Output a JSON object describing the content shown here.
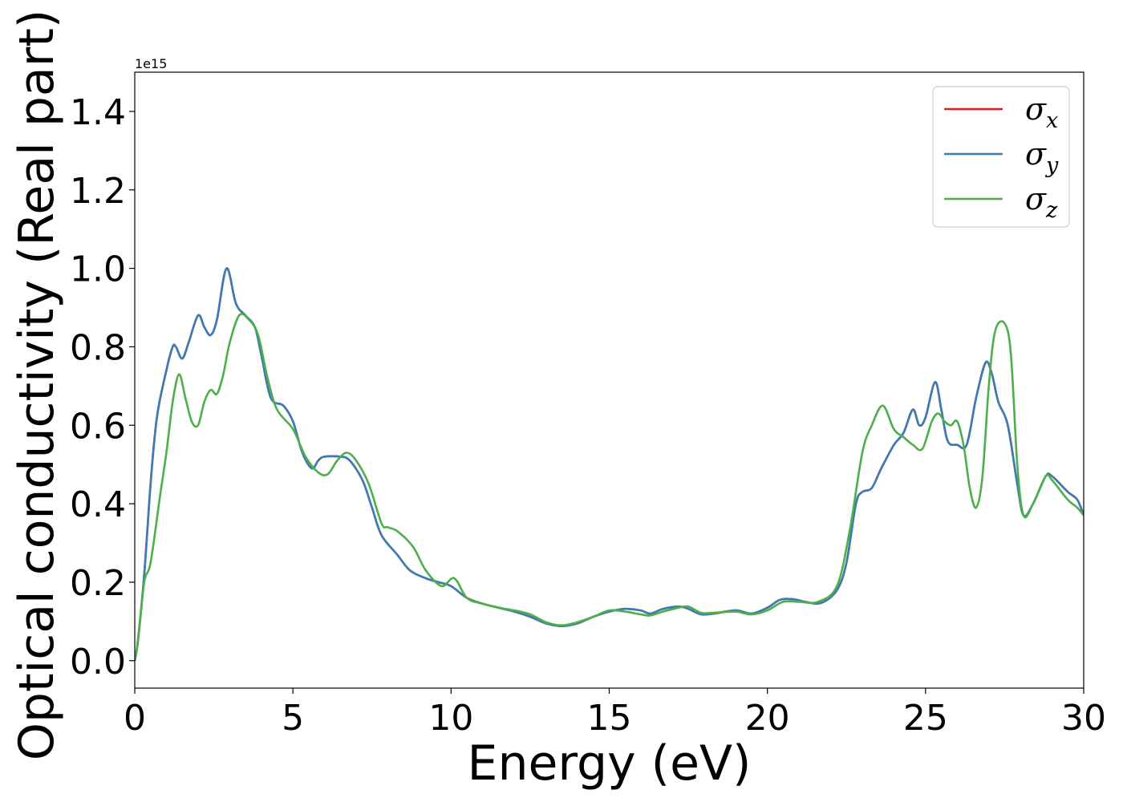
{
  "chart_data": {
    "type": "line",
    "xlabel": "Energy (eV)",
    "ylabel": "Optical conductivity (Real part)",
    "offset_label": "1e15",
    "xlim": [
      0,
      30
    ],
    "ylim": [
      -0.07,
      1.5
    ],
    "xticks": [
      0,
      5,
      10,
      15,
      20,
      25,
      30
    ],
    "yticks": [
      0.0,
      0.2,
      0.4,
      0.6,
      0.8,
      1.0,
      1.2,
      1.4
    ],
    "xtick_labels": [
      "0",
      "5",
      "10",
      "15",
      "20",
      "25",
      "30"
    ],
    "ytick_labels": [
      "0.0",
      "0.2",
      "0.4",
      "0.6",
      "0.8",
      "1.0",
      "1.2",
      "1.4"
    ],
    "grid": false,
    "legend_position": "top-right",
    "series": [
      {
        "name": "σx",
        "name_base": "σ",
        "name_sub": "x",
        "color": "#e41a1c",
        "points": [
          [
            0,
            0
          ],
          [
            0.1,
            0.05
          ],
          [
            0.3,
            0.22
          ],
          [
            0.5,
            0.45
          ],
          [
            0.7,
            0.62
          ],
          [
            1.0,
            0.74
          ],
          [
            1.2,
            0.8
          ],
          [
            1.3,
            0.8
          ],
          [
            1.5,
            0.77
          ],
          [
            1.7,
            0.81
          ],
          [
            2.0,
            0.88
          ],
          [
            2.2,
            0.85
          ],
          [
            2.4,
            0.83
          ],
          [
            2.6,
            0.87
          ],
          [
            2.9,
            1.0
          ],
          [
            3.2,
            0.91
          ],
          [
            3.5,
            0.88
          ],
          [
            3.8,
            0.85
          ],
          [
            4.0,
            0.78
          ],
          [
            4.3,
            0.67
          ],
          [
            4.7,
            0.65
          ],
          [
            5.0,
            0.61
          ],
          [
            5.3,
            0.53
          ],
          [
            5.6,
            0.49
          ],
          [
            5.8,
            0.51
          ],
          [
            6.0,
            0.52
          ],
          [
            6.5,
            0.52
          ],
          [
            6.8,
            0.51
          ],
          [
            7.2,
            0.46
          ],
          [
            7.5,
            0.39
          ],
          [
            7.8,
            0.32
          ],
          [
            8.3,
            0.27
          ],
          [
            8.7,
            0.23
          ],
          [
            9.2,
            0.21
          ],
          [
            9.6,
            0.2
          ],
          [
            10.0,
            0.19
          ],
          [
            10.5,
            0.16
          ],
          [
            11.0,
            0.145
          ],
          [
            11.5,
            0.135
          ],
          [
            12.0,
            0.125
          ],
          [
            12.5,
            0.112
          ],
          [
            13.0,
            0.095
          ],
          [
            13.5,
            0.088
          ],
          [
            14.0,
            0.095
          ],
          [
            14.5,
            0.112
          ],
          [
            15.0,
            0.125
          ],
          [
            15.5,
            0.132
          ],
          [
            16.0,
            0.128
          ],
          [
            16.3,
            0.12
          ],
          [
            16.7,
            0.132
          ],
          [
            17.2,
            0.138
          ],
          [
            17.5,
            0.132
          ],
          [
            17.9,
            0.118
          ],
          [
            18.3,
            0.12
          ],
          [
            19.0,
            0.128
          ],
          [
            19.5,
            0.12
          ],
          [
            20.0,
            0.135
          ],
          [
            20.4,
            0.155
          ],
          [
            20.8,
            0.157
          ],
          [
            21.2,
            0.15
          ],
          [
            21.7,
            0.147
          ],
          [
            22.2,
            0.18
          ],
          [
            22.5,
            0.25
          ],
          [
            22.8,
            0.4
          ],
          [
            23.0,
            0.43
          ],
          [
            23.3,
            0.44
          ],
          [
            23.6,
            0.49
          ],
          [
            24.0,
            0.55
          ],
          [
            24.3,
            0.58
          ],
          [
            24.6,
            0.64
          ],
          [
            24.8,
            0.6
          ],
          [
            25.0,
            0.62
          ],
          [
            25.3,
            0.71
          ],
          [
            25.5,
            0.64
          ],
          [
            25.7,
            0.56
          ],
          [
            26.0,
            0.55
          ],
          [
            26.3,
            0.55
          ],
          [
            26.6,
            0.67
          ],
          [
            26.9,
            0.76
          ],
          [
            27.1,
            0.73
          ],
          [
            27.3,
            0.66
          ],
          [
            27.6,
            0.6
          ],
          [
            27.9,
            0.45
          ],
          [
            28.1,
            0.37
          ],
          [
            28.4,
            0.4
          ],
          [
            28.8,
            0.47
          ],
          [
            29.0,
            0.47
          ],
          [
            29.5,
            0.43
          ],
          [
            29.8,
            0.41
          ],
          [
            30.0,
            0.37
          ]
        ]
      },
      {
        "name": "σy",
        "name_base": "σ",
        "name_sub": "y",
        "color": "#377eb8",
        "points": [
          [
            0,
            0
          ],
          [
            0.1,
            0.05
          ],
          [
            0.3,
            0.22
          ],
          [
            0.5,
            0.45
          ],
          [
            0.7,
            0.62
          ],
          [
            1.0,
            0.74
          ],
          [
            1.2,
            0.8
          ],
          [
            1.3,
            0.8
          ],
          [
            1.5,
            0.77
          ],
          [
            1.7,
            0.81
          ],
          [
            2.0,
            0.88
          ],
          [
            2.2,
            0.85
          ],
          [
            2.4,
            0.83
          ],
          [
            2.6,
            0.87
          ],
          [
            2.9,
            1.0
          ],
          [
            3.2,
            0.91
          ],
          [
            3.5,
            0.88
          ],
          [
            3.8,
            0.85
          ],
          [
            4.0,
            0.78
          ],
          [
            4.3,
            0.67
          ],
          [
            4.7,
            0.65
          ],
          [
            5.0,
            0.61
          ],
          [
            5.3,
            0.53
          ],
          [
            5.6,
            0.49
          ],
          [
            5.8,
            0.51
          ],
          [
            6.0,
            0.52
          ],
          [
            6.5,
            0.52
          ],
          [
            6.8,
            0.51
          ],
          [
            7.2,
            0.46
          ],
          [
            7.5,
            0.39
          ],
          [
            7.8,
            0.32
          ],
          [
            8.3,
            0.27
          ],
          [
            8.7,
            0.23
          ],
          [
            9.2,
            0.21
          ],
          [
            9.6,
            0.2
          ],
          [
            10.0,
            0.19
          ],
          [
            10.5,
            0.16
          ],
          [
            11.0,
            0.145
          ],
          [
            11.5,
            0.135
          ],
          [
            12.0,
            0.125
          ],
          [
            12.5,
            0.112
          ],
          [
            13.0,
            0.095
          ],
          [
            13.5,
            0.088
          ],
          [
            14.0,
            0.095
          ],
          [
            14.5,
            0.112
          ],
          [
            15.0,
            0.125
          ],
          [
            15.5,
            0.132
          ],
          [
            16.0,
            0.128
          ],
          [
            16.3,
            0.12
          ],
          [
            16.7,
            0.132
          ],
          [
            17.2,
            0.138
          ],
          [
            17.5,
            0.132
          ],
          [
            17.9,
            0.118
          ],
          [
            18.3,
            0.12
          ],
          [
            19.0,
            0.128
          ],
          [
            19.5,
            0.12
          ],
          [
            20.0,
            0.135
          ],
          [
            20.4,
            0.155
          ],
          [
            20.8,
            0.157
          ],
          [
            21.2,
            0.15
          ],
          [
            21.7,
            0.147
          ],
          [
            22.2,
            0.18
          ],
          [
            22.5,
            0.25
          ],
          [
            22.8,
            0.4
          ],
          [
            23.0,
            0.43
          ],
          [
            23.3,
            0.44
          ],
          [
            23.6,
            0.49
          ],
          [
            24.0,
            0.55
          ],
          [
            24.3,
            0.58
          ],
          [
            24.6,
            0.64
          ],
          [
            24.8,
            0.6
          ],
          [
            25.0,
            0.62
          ],
          [
            25.3,
            0.71
          ],
          [
            25.5,
            0.64
          ],
          [
            25.7,
            0.56
          ],
          [
            26.0,
            0.55
          ],
          [
            26.3,
            0.55
          ],
          [
            26.6,
            0.67
          ],
          [
            26.9,
            0.76
          ],
          [
            27.1,
            0.73
          ],
          [
            27.3,
            0.66
          ],
          [
            27.6,
            0.6
          ],
          [
            27.9,
            0.45
          ],
          [
            28.1,
            0.37
          ],
          [
            28.4,
            0.4
          ],
          [
            28.8,
            0.47
          ],
          [
            29.0,
            0.47
          ],
          [
            29.5,
            0.43
          ],
          [
            29.8,
            0.41
          ],
          [
            30.0,
            0.37
          ]
        ]
      },
      {
        "name": "σz",
        "name_base": "σ",
        "name_sub": "z",
        "color": "#4daf4a",
        "points": [
          [
            0,
            0
          ],
          [
            0.1,
            0.05
          ],
          [
            0.3,
            0.2
          ],
          [
            0.5,
            0.25
          ],
          [
            0.8,
            0.42
          ],
          [
            1.0,
            0.53
          ],
          [
            1.2,
            0.66
          ],
          [
            1.4,
            0.73
          ],
          [
            1.6,
            0.67
          ],
          [
            1.8,
            0.61
          ],
          [
            2.0,
            0.6
          ],
          [
            2.2,
            0.66
          ],
          [
            2.4,
            0.69
          ],
          [
            2.6,
            0.68
          ],
          [
            2.8,
            0.73
          ],
          [
            3.0,
            0.81
          ],
          [
            3.3,
            0.88
          ],
          [
            3.6,
            0.87
          ],
          [
            3.9,
            0.83
          ],
          [
            4.2,
            0.72
          ],
          [
            4.5,
            0.64
          ],
          [
            5.0,
            0.59
          ],
          [
            5.4,
            0.52
          ],
          [
            5.8,
            0.48
          ],
          [
            6.1,
            0.475
          ],
          [
            6.4,
            0.51
          ],
          [
            6.7,
            0.53
          ],
          [
            7.0,
            0.51
          ],
          [
            7.4,
            0.45
          ],
          [
            7.8,
            0.35
          ],
          [
            8.0,
            0.34
          ],
          [
            8.3,
            0.33
          ],
          [
            8.8,
            0.29
          ],
          [
            9.2,
            0.23
          ],
          [
            9.7,
            0.19
          ],
          [
            10.1,
            0.21
          ],
          [
            10.5,
            0.16
          ],
          [
            11.0,
            0.145
          ],
          [
            11.5,
            0.135
          ],
          [
            12.0,
            0.128
          ],
          [
            12.5,
            0.118
          ],
          [
            13.0,
            0.098
          ],
          [
            13.5,
            0.09
          ],
          [
            14.0,
            0.098
          ],
          [
            14.5,
            0.112
          ],
          [
            15.0,
            0.128
          ],
          [
            15.5,
            0.125
          ],
          [
            16.0,
            0.118
          ],
          [
            16.3,
            0.115
          ],
          [
            16.7,
            0.125
          ],
          [
            17.2,
            0.135
          ],
          [
            17.5,
            0.138
          ],
          [
            17.9,
            0.122
          ],
          [
            18.3,
            0.122
          ],
          [
            19.0,
            0.125
          ],
          [
            19.5,
            0.118
          ],
          [
            20.0,
            0.128
          ],
          [
            20.5,
            0.15
          ],
          [
            21.0,
            0.15
          ],
          [
            21.6,
            0.15
          ],
          [
            22.2,
            0.19
          ],
          [
            22.6,
            0.33
          ],
          [
            23.0,
            0.53
          ],
          [
            23.3,
            0.6
          ],
          [
            23.65,
            0.65
          ],
          [
            24.0,
            0.59
          ],
          [
            24.3,
            0.57
          ],
          [
            24.6,
            0.55
          ],
          [
            24.9,
            0.54
          ],
          [
            25.2,
            0.61
          ],
          [
            25.4,
            0.63
          ],
          [
            25.6,
            0.61
          ],
          [
            25.8,
            0.6
          ],
          [
            26.0,
            0.61
          ],
          [
            26.2,
            0.55
          ],
          [
            26.4,
            0.44
          ],
          [
            26.6,
            0.39
          ],
          [
            26.8,
            0.47
          ],
          [
            27.0,
            0.7
          ],
          [
            27.2,
            0.84
          ],
          [
            27.5,
            0.86
          ],
          [
            27.7,
            0.78
          ],
          [
            27.9,
            0.5
          ],
          [
            28.1,
            0.37
          ],
          [
            28.4,
            0.4
          ],
          [
            28.8,
            0.47
          ],
          [
            29.0,
            0.46
          ],
          [
            29.5,
            0.41
          ],
          [
            29.8,
            0.39
          ],
          [
            30.0,
            0.37
          ]
        ]
      }
    ]
  }
}
